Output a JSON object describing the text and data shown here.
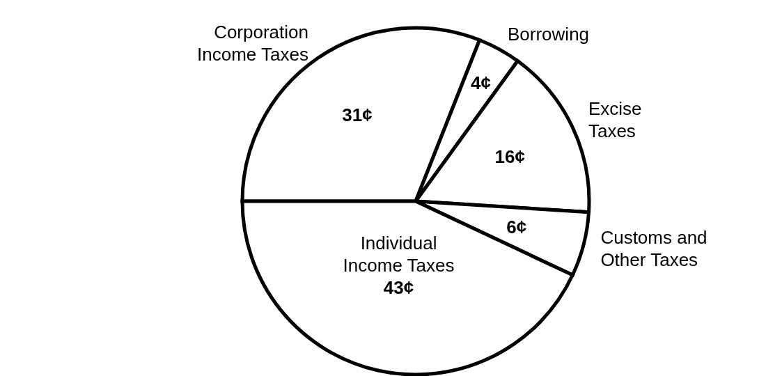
{
  "chart_data": {
    "type": "pie",
    "categories": [
      "Corporation Income Taxes",
      "Borrowing",
      "Excise Taxes",
      "Customs and Other Taxes",
      "Individual Income Taxes"
    ],
    "values": [
      31,
      4,
      16,
      6,
      43
    ],
    "value_labels": [
      "31¢",
      "4¢",
      "16¢",
      "6¢",
      "43¢"
    ],
    "colors": [
      "#ffffff",
      "#ffffff",
      "#ffffff",
      "#ffffff",
      "#ffffff"
    ],
    "legend": false
  }
}
